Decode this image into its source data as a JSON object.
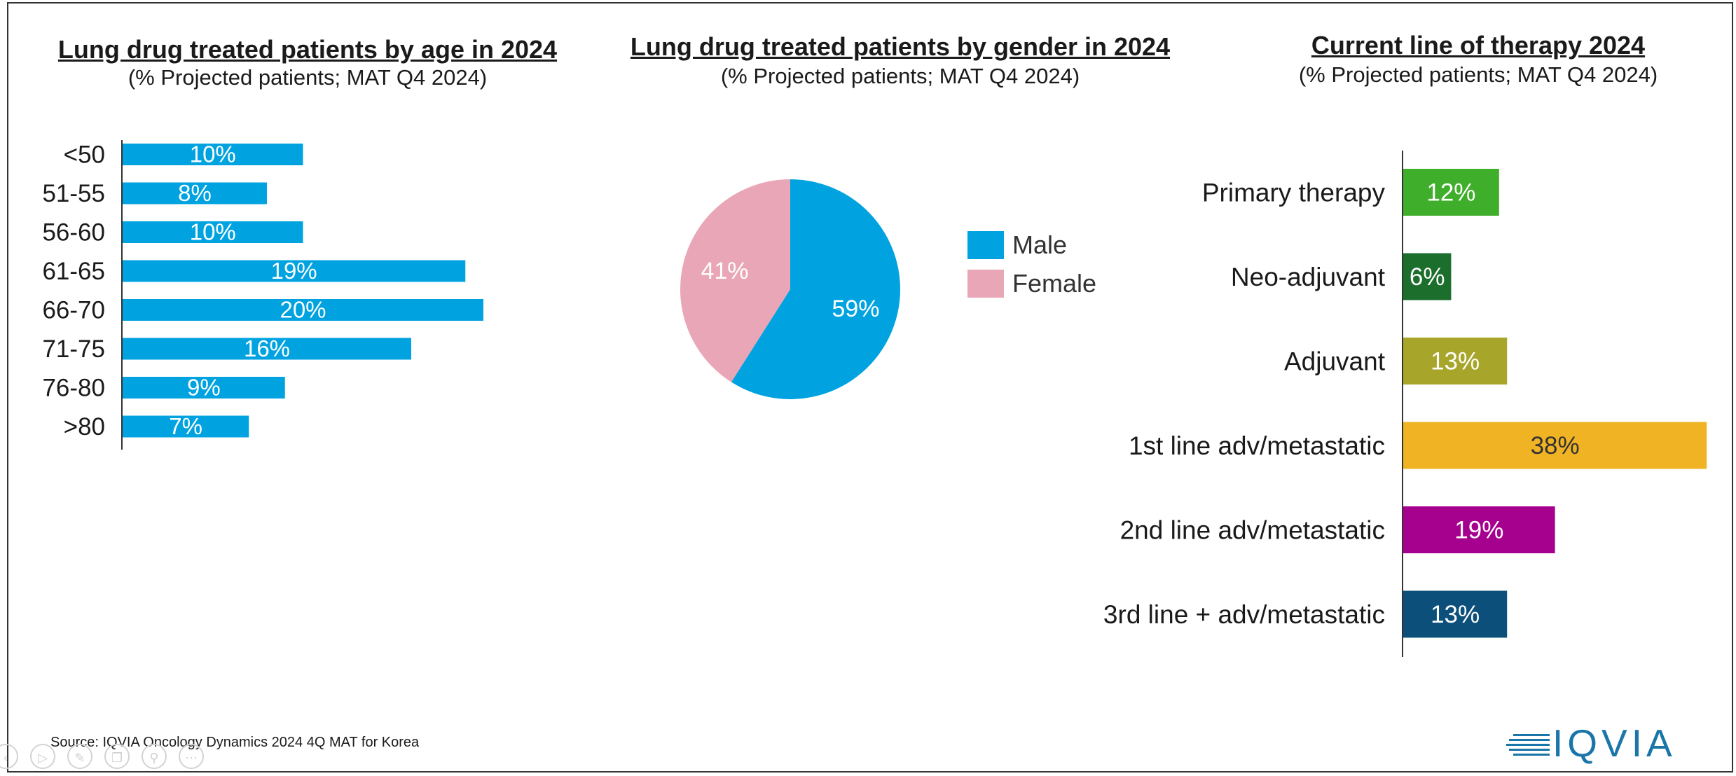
{
  "age_chart": {
    "title": "Lung drug treated patients by age in 2024",
    "subtitle": "(% Projected patients; MAT Q4 2024)"
  },
  "gender_chart": {
    "title": "Lung drug treated patients by gender in 2024",
    "subtitle": "(% Projected patients; MAT Q4 2024)"
  },
  "therapy_chart": {
    "title": "Current line of therapy 2024",
    "subtitle": "(% Projected patients; MAT Q4 2024)"
  },
  "footer": {
    "source": "Source: IQVIA Oncology Dynamics 2024 4Q MAT for Korea",
    "logo_text": "IQVIA"
  },
  "controls": [
    "prev-icon",
    "play-icon",
    "pen-icon",
    "copy-icon",
    "zoom-icon",
    "more-icon"
  ],
  "chart_data": [
    {
      "type": "bar",
      "orientation": "horizontal",
      "title": "Lung drug treated patients by age in 2024",
      "subtitle": "(% Projected patients; MAT Q4 2024)",
      "categories": [
        "<50",
        "51-55",
        "56-60",
        "61-65",
        "66-70",
        "71-75",
        "76-80",
        ">80"
      ],
      "values": [
        10,
        8,
        10,
        19,
        20,
        16,
        9,
        7
      ],
      "labels": [
        "10%",
        "8%",
        "10%",
        "19%",
        "20%",
        "16%",
        "9%",
        "7%"
      ],
      "color": "#00a3e0",
      "grid": false
    },
    {
      "type": "pie",
      "title": "Lung drug treated patients by gender in 2024",
      "subtitle": "(% Projected patients; MAT Q4 2024)",
      "categories": [
        "Male",
        "Female"
      ],
      "values": [
        59,
        41
      ],
      "labels": [
        "59%",
        "41%"
      ],
      "colors": [
        "#00a3e0",
        "#e9a6b6"
      ],
      "legend": "right"
    },
    {
      "type": "bar",
      "orientation": "horizontal",
      "title": "Current line of therapy 2024",
      "subtitle": "(% Projected patients; MAT Q4 2024)",
      "categories": [
        "Primary therapy",
        "Neo-adjuvant",
        "Adjuvant",
        "1st line adv/metastatic",
        "2nd line adv/metastatic",
        "3rd line + adv/metastatic"
      ],
      "values": [
        12,
        6,
        13,
        38,
        19,
        13
      ],
      "labels": [
        "12%",
        "6%",
        "13%",
        "38%",
        "19%",
        "13%"
      ],
      "colors": [
        "#3fae2a",
        "#1b6e2c",
        "#a8a62a",
        "#f0b323",
        "#a6008f",
        "#0b4f7a"
      ],
      "label_colors": [
        "#ffffff",
        "#ffffff",
        "#ffffff",
        "#333333",
        "#ffffff",
        "#ffffff"
      ],
      "grid": false
    }
  ]
}
